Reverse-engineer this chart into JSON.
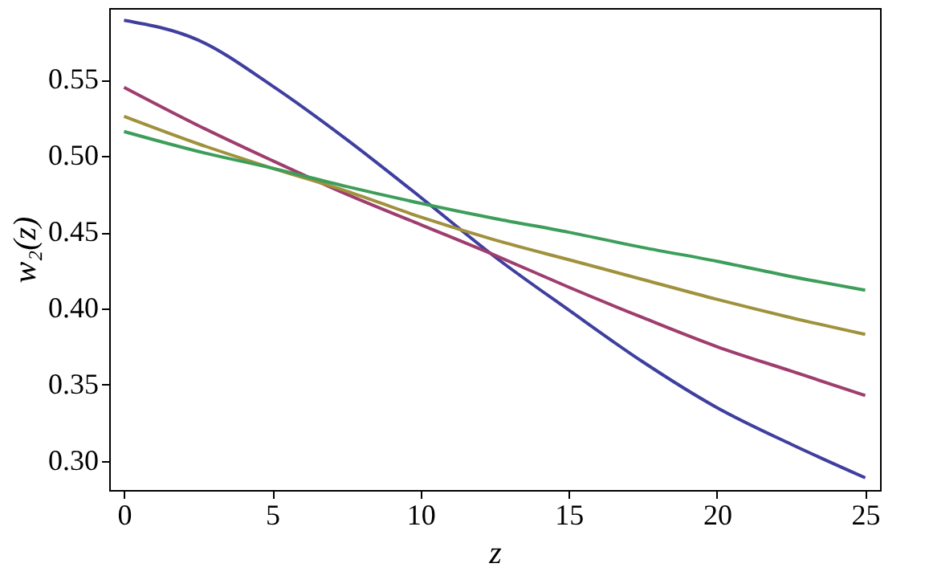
{
  "chart_data": {
    "type": "line",
    "xlabel": "z",
    "ylabel": "w₂(z)",
    "x": [
      0,
      2.5,
      5,
      7.5,
      10,
      12.5,
      15,
      17.5,
      20,
      22.5,
      25
    ],
    "series": [
      {
        "color": "#3f3f9f",
        "values": [
          0.589,
          0.576,
          0.546,
          0.511,
          0.473,
          0.434,
          0.399,
          0.365,
          0.335,
          0.311,
          0.289
        ]
      },
      {
        "color": "#9e3d6e",
        "values": [
          0.545,
          0.52,
          0.497,
          0.475,
          0.455,
          0.435,
          0.414,
          0.394,
          0.375,
          0.359,
          0.343
        ]
      },
      {
        "color": "#a0913c",
        "values": [
          0.526,
          0.508,
          0.492,
          0.477,
          0.46,
          0.445,
          0.432,
          0.419,
          0.406,
          0.394,
          0.383
        ]
      },
      {
        "color": "#3c9e5a",
        "values": [
          0.516,
          0.503,
          0.492,
          0.48,
          0.469,
          0.459,
          0.45,
          0.44,
          0.431,
          0.421,
          0.412
        ]
      }
    ],
    "xlim": [
      -0.5,
      25.5
    ],
    "ylim": [
      0.281,
      0.597
    ],
    "xticks": [
      0,
      5,
      10,
      15,
      20,
      25
    ],
    "yticks": [
      {
        "value": 0.3,
        "label": "0.30"
      },
      0.35,
      {
        "value": 0.4,
        "label": "0.40"
      },
      0.45,
      {
        "value": 0.5,
        "label": "0.50"
      },
      0.55
    ],
    "grid": false,
    "legend": false,
    "marker": "none",
    "line_style": "solid"
  }
}
